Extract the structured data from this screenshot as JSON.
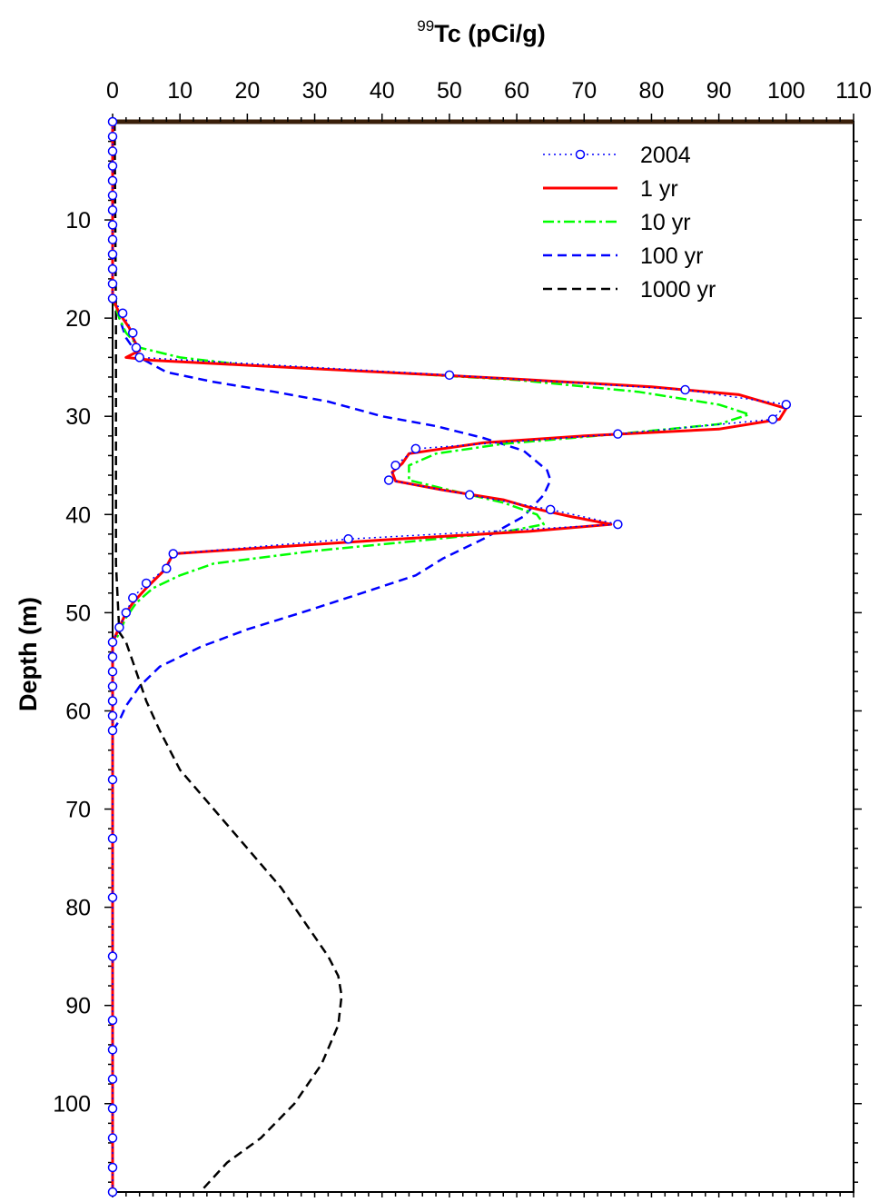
{
  "chart_data": {
    "type": "line",
    "title": "",
    "xlabel_sup": "99",
    "xlabel_main": "Tc (pCi/g)",
    "ylabel": "Depth (m)",
    "x_axis_position": "top",
    "y_axis_inverted": true,
    "xlim": [
      0,
      110
    ],
    "ylim": [
      0,
      109
    ],
    "x_ticks": [
      "0",
      "10",
      "20",
      "30",
      "40",
      "50",
      "60",
      "70",
      "80",
      "90",
      "100",
      "110"
    ],
    "y_ticks": [
      "10",
      "20",
      "30",
      "40",
      "50",
      "60",
      "70",
      "80",
      "90",
      "100"
    ],
    "grid": false,
    "legend_position": "top-right",
    "series": [
      {
        "name": "2004",
        "color": "#0000ff",
        "style": "dotted-with-circle-markers",
        "points": [
          [
            0,
            0
          ],
          [
            0,
            1.5
          ],
          [
            0,
            3
          ],
          [
            0,
            4.5
          ],
          [
            0,
            6
          ],
          [
            0,
            7.5
          ],
          [
            0,
            9
          ],
          [
            0,
            10.5
          ],
          [
            0,
            12
          ],
          [
            0,
            13.5
          ],
          [
            0,
            15
          ],
          [
            0,
            16.5
          ],
          [
            0,
            18
          ],
          [
            1.5,
            19.5
          ],
          [
            3,
            21.5
          ],
          [
            3.5,
            23
          ],
          [
            4,
            24
          ],
          [
            50,
            25.8
          ],
          [
            85,
            27.3
          ],
          [
            100,
            28.8
          ],
          [
            98,
            30.3
          ],
          [
            75,
            31.8
          ],
          [
            45,
            33.3
          ],
          [
            42,
            35
          ],
          [
            41,
            36.5
          ],
          [
            53,
            38
          ],
          [
            65,
            39.5
          ],
          [
            75,
            41
          ],
          [
            35,
            42.5
          ],
          [
            9,
            44
          ],
          [
            8,
            45.5
          ],
          [
            5,
            47
          ],
          [
            3,
            48.5
          ],
          [
            2,
            50
          ],
          [
            1,
            51.5
          ],
          [
            0,
            53
          ],
          [
            0,
            54.5
          ],
          [
            0,
            56
          ],
          [
            0,
            57.5
          ],
          [
            0,
            59
          ],
          [
            0,
            60.5
          ],
          [
            0,
            62
          ],
          [
            0,
            67
          ],
          [
            0,
            73
          ],
          [
            0,
            79
          ],
          [
            0,
            85
          ],
          [
            0,
            91.5
          ],
          [
            0,
            94.5
          ],
          [
            0,
            97.5
          ],
          [
            0,
            100.5
          ],
          [
            0,
            103.5
          ],
          [
            0,
            106.5
          ],
          [
            0,
            109
          ]
        ]
      },
      {
        "name": "1 yr",
        "color": "#ff0000",
        "style": "solid",
        "points": [
          [
            0,
            0
          ],
          [
            0,
            18
          ],
          [
            1,
            19.5
          ],
          [
            2.5,
            21
          ],
          [
            3,
            22
          ],
          [
            4,
            23.3
          ],
          [
            2,
            24
          ],
          [
            6,
            24.3
          ],
          [
            20,
            24.8
          ],
          [
            40,
            25.5
          ],
          [
            60,
            26.2
          ],
          [
            80,
            27
          ],
          [
            93,
            27.8
          ],
          [
            100,
            29.2
          ],
          [
            99,
            30.3
          ],
          [
            90,
            31.3
          ],
          [
            70,
            32
          ],
          [
            55,
            32.7
          ],
          [
            44,
            33.8
          ],
          [
            43,
            34.8
          ],
          [
            41.5,
            35.7
          ],
          [
            42,
            36.6
          ],
          [
            49,
            37.5
          ],
          [
            58,
            38.5
          ],
          [
            62,
            39.3
          ],
          [
            68,
            40.2
          ],
          [
            74,
            41
          ],
          [
            62,
            41.7
          ],
          [
            40,
            42.6
          ],
          [
            20,
            43.5
          ],
          [
            9,
            44
          ],
          [
            8,
            45.3
          ],
          [
            7.5,
            45.8
          ],
          [
            5,
            47.5
          ],
          [
            3,
            49
          ],
          [
            2,
            50
          ],
          [
            1,
            51.5
          ],
          [
            0,
            53
          ],
          [
            0,
            109
          ]
        ]
      },
      {
        "name": "10 yr",
        "color": "#00ff00",
        "style": "dash-dot",
        "points": [
          [
            0,
            0
          ],
          [
            0,
            18
          ],
          [
            1,
            20
          ],
          [
            2,
            21.5
          ],
          [
            4,
            23
          ],
          [
            10,
            24
          ],
          [
            20,
            24.8
          ],
          [
            40,
            25.5
          ],
          [
            60,
            26.3
          ],
          [
            78,
            27.5
          ],
          [
            90,
            28.8
          ],
          [
            94.5,
            29.8
          ],
          [
            90,
            30.8
          ],
          [
            75,
            31.8
          ],
          [
            58,
            32.8
          ],
          [
            48,
            33.8
          ],
          [
            44,
            35
          ],
          [
            44,
            36.5
          ],
          [
            50,
            37.5
          ],
          [
            58,
            38.8
          ],
          [
            63,
            40
          ],
          [
            64,
            41
          ],
          [
            58,
            41.8
          ],
          [
            45,
            42.7
          ],
          [
            30,
            43.7
          ],
          [
            15,
            45
          ],
          [
            10,
            46.2
          ],
          [
            6,
            47.5
          ],
          [
            3.5,
            49
          ],
          [
            2,
            50.5
          ],
          [
            1,
            52
          ],
          [
            0,
            53.5
          ],
          [
            0,
            109
          ]
        ]
      },
      {
        "name": "100 yr",
        "color": "#0000ff",
        "style": "dashed",
        "points": [
          [
            0,
            0
          ],
          [
            0,
            18
          ],
          [
            1,
            20
          ],
          [
            2,
            22
          ],
          [
            4,
            24
          ],
          [
            8,
            25.5
          ],
          [
            15,
            26.5
          ],
          [
            24,
            27.5
          ],
          [
            32,
            28.5
          ],
          [
            40,
            30
          ],
          [
            48,
            31
          ],
          [
            55,
            32.2
          ],
          [
            61,
            33.5
          ],
          [
            64.5,
            35.5
          ],
          [
            65,
            36.5
          ],
          [
            64,
            38
          ],
          [
            61,
            40.2
          ],
          [
            55,
            42.5
          ],
          [
            49,
            44.5
          ],
          [
            45,
            46.2
          ],
          [
            37,
            48
          ],
          [
            28,
            50
          ],
          [
            20,
            51.7
          ],
          [
            13,
            53.5
          ],
          [
            7,
            55.5
          ],
          [
            4,
            57.5
          ],
          [
            2,
            59.5
          ],
          [
            1,
            61
          ],
          [
            0,
            62
          ],
          [
            0,
            109
          ]
        ]
      },
      {
        "name": "1000 yr",
        "color": "#000000",
        "style": "dashed",
        "points": [
          [
            0.3,
            0
          ],
          [
            0.5,
            20
          ],
          [
            0.5,
            35
          ],
          [
            0.5,
            45
          ],
          [
            1,
            52
          ],
          [
            2,
            53
          ],
          [
            3,
            55
          ],
          [
            4,
            57
          ],
          [
            5,
            59
          ],
          [
            7,
            62
          ],
          [
            10,
            66
          ],
          [
            15,
            70
          ],
          [
            20,
            74
          ],
          [
            25,
            78
          ],
          [
            29,
            82
          ],
          [
            32,
            85
          ],
          [
            33.5,
            87
          ],
          [
            34,
            89
          ],
          [
            33.5,
            92
          ],
          [
            31,
            96
          ],
          [
            27,
            100
          ],
          [
            22,
            103.5
          ],
          [
            17,
            106
          ],
          [
            13,
            109
          ]
        ]
      }
    ]
  }
}
